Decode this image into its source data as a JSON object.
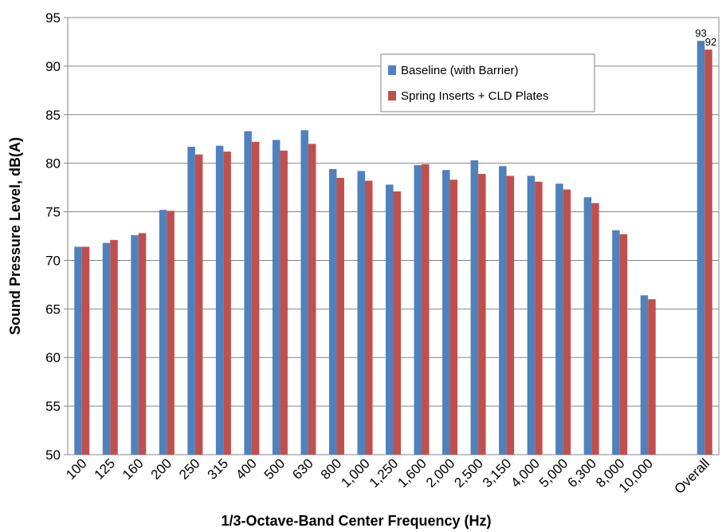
{
  "chart_data": {
    "type": "bar",
    "title": "",
    "xlabel": "1/3-Octave-Band Center Frequency (Hz)",
    "ylabel": "Sound Pressure Level, dB(A)",
    "ylim": [
      50,
      95
    ],
    "yticks": [
      50,
      55,
      60,
      65,
      70,
      75,
      80,
      85,
      90,
      95
    ],
    "grid": true,
    "legend_position": "top-right",
    "categories": [
      "100",
      "125",
      "160",
      "200",
      "250",
      "315",
      "400",
      "500",
      "630",
      "800",
      "1,000",
      "1,250",
      "1,600",
      "2,000",
      "2,500",
      "3,150",
      "4,000",
      "5,000",
      "6,300",
      "8,000",
      "10,000",
      "",
      "Overall"
    ],
    "series": [
      {
        "name": "Baseline (with Barrier)",
        "color": "#4F81BD",
        "values": [
          71.4,
          71.8,
          72.6,
          75.2,
          81.7,
          81.8,
          83.3,
          82.4,
          83.4,
          79.4,
          79.2,
          77.8,
          79.8,
          79.3,
          80.3,
          79.7,
          78.7,
          77.9,
          76.5,
          73.1,
          66.4,
          null,
          92.6
        ]
      },
      {
        "name": "Spring Inserts + CLD Plates",
        "color": "#C0504D",
        "values": [
          71.4,
          72.1,
          72.8,
          75.1,
          80.9,
          81.2,
          82.2,
          81.3,
          82.0,
          78.5,
          78.2,
          77.1,
          79.9,
          78.3,
          78.9,
          78.7,
          78.1,
          77.3,
          75.9,
          72.7,
          66.0,
          null,
          91.7
        ]
      }
    ],
    "data_labels": [
      {
        "category": "Overall",
        "series": 0,
        "text": "93"
      },
      {
        "category": "Overall",
        "series": 1,
        "text": "92"
      }
    ]
  }
}
